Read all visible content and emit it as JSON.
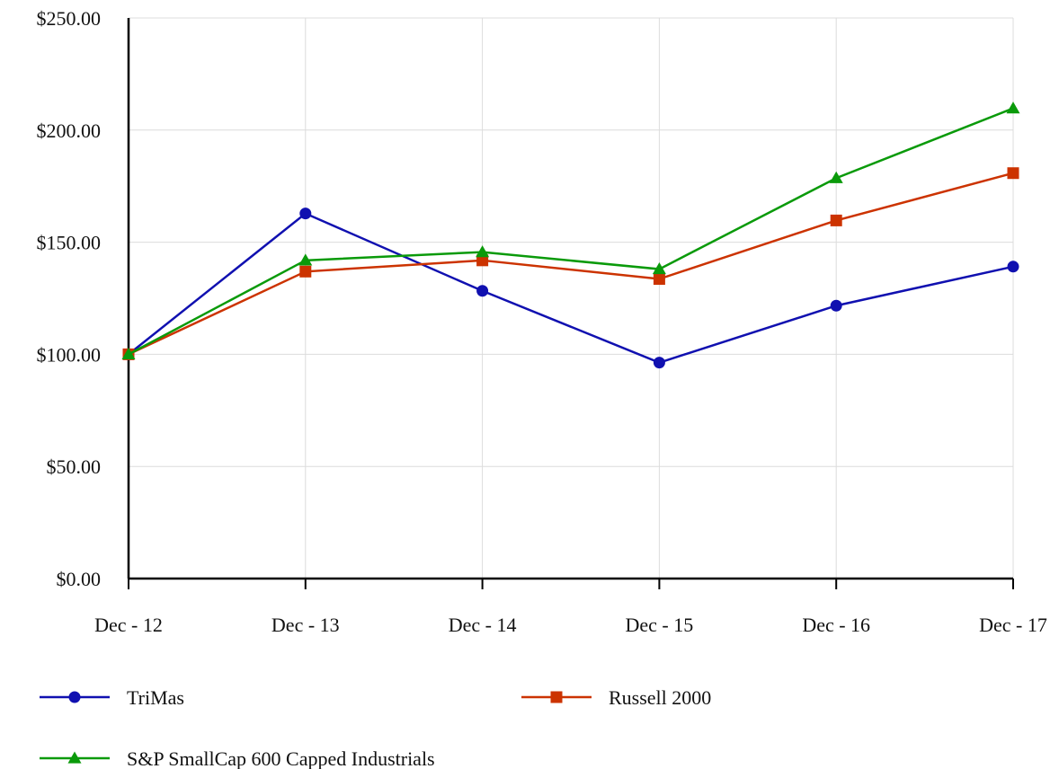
{
  "chart_data": {
    "type": "line",
    "title": "",
    "xlabel": "",
    "ylabel": "",
    "categories": [
      "Dec - 12",
      "Dec - 13",
      "Dec - 14",
      "Dec - 15",
      "Dec - 16",
      "Dec - 17"
    ],
    "y_ticks": [
      "$0.00",
      "$50.00",
      "$100.00",
      "$150.00",
      "$200.00",
      "$250.00"
    ],
    "ylim": [
      0,
      250
    ],
    "grid": true,
    "legend_position": "bottom",
    "series": [
      {
        "name": "TriMas",
        "color": "#1010b0",
        "marker": "circle",
        "values": [
          100.0,
          162.8,
          128.3,
          96.3,
          121.7,
          139.1
        ]
      },
      {
        "name": "Russell 2000",
        "color": "#cc3300",
        "marker": "square",
        "values": [
          100.0,
          136.9,
          141.9,
          133.6,
          159.7,
          180.8
        ]
      },
      {
        "name": "S&P SmallCap 600 Capped Industrials",
        "color": "#0a9a0a",
        "marker": "triangle",
        "values": [
          100.0,
          141.9,
          145.6,
          138.0,
          178.6,
          209.7
        ]
      }
    ]
  }
}
